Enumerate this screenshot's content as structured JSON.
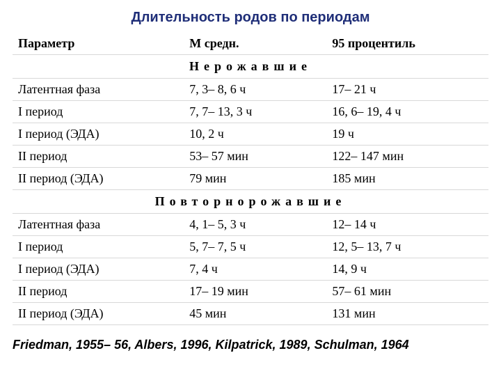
{
  "title": "Длительность родов по периодам",
  "headers": {
    "param": "Параметр",
    "mean": "М средн.",
    "p95": "95 процентиль"
  },
  "section1": "Нерожавшие",
  "nulliparous": [
    {
      "param": "Латентная фаза",
      "mean": "7, 3– 8, 6 ч",
      "p95": "17– 21 ч"
    },
    {
      "param": "I период",
      "mean": "7, 7– 13, 3 ч",
      "p95": "16, 6– 19, 4 ч"
    },
    {
      "param": "I период (ЭДА)",
      "mean": "10, 2 ч",
      "p95": "19 ч"
    },
    {
      "param": "II период",
      "mean": "53– 57 мин",
      "p95": "122– 147 мин"
    },
    {
      "param": "II период (ЭДА)",
      "mean": "79 мин",
      "p95": "185 мин"
    }
  ],
  "section2": "Повторнорожавшие",
  "multiparous": [
    {
      "param": "Латентная фаза",
      "mean": "4, 1– 5, 3 ч",
      "p95": "12– 14 ч"
    },
    {
      "param": "I период",
      "mean": "5, 7– 7, 5 ч",
      "p95": "12, 5– 13, 7 ч"
    },
    {
      "param": "I период (ЭДА)",
      "mean": "7, 4 ч",
      "p95": "14, 9 ч"
    },
    {
      "param": "II период",
      "mean": "17– 19 мин",
      "p95": "57– 61 мин"
    },
    {
      "param": "II период (ЭДА)",
      "mean": "45 мин",
      "p95": "131 мин"
    }
  ],
  "citation": "Friedman, 1955– 56, Albers, 1996, Kilpatrick, 1989, Schulman, 1964",
  "style": {
    "type": "table",
    "columns": [
      "Параметр",
      "М средн.",
      "95 процентиль"
    ],
    "title_color": "#1f2e78",
    "title_fontsize": 20,
    "title_font": "Arial",
    "body_font": "Times New Roman",
    "body_fontsize": 18,
    "row_border_color": "#d8d8d8",
    "background_color": "#ffffff",
    "section_letter_spacing": 7,
    "citation_font": "Arial",
    "citation_italic": true,
    "citation_bold": true
  }
}
